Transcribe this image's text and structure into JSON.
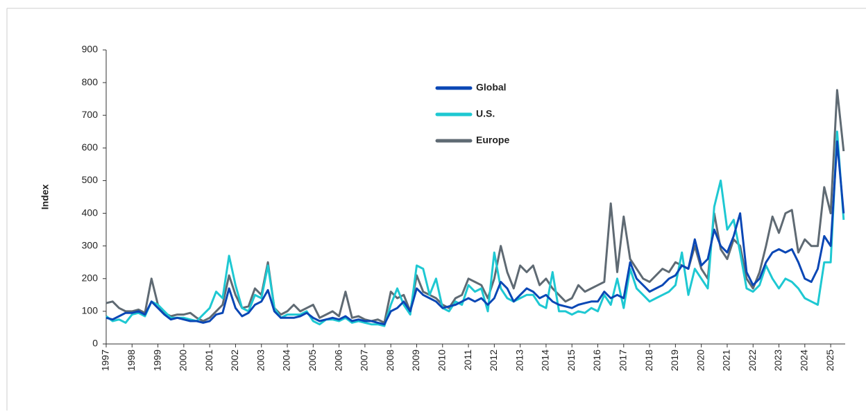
{
  "chart_data": {
    "type": "line",
    "y_label": "Index",
    "x": [
      1997,
      1997.25,
      1997.5,
      1997.75,
      1998,
      1998.25,
      1998.5,
      1998.75,
      1999,
      1999.25,
      1999.5,
      1999.75,
      2000,
      2000.25,
      2000.5,
      2000.75,
      2001,
      2001.25,
      2001.5,
      2001.75,
      2002,
      2002.25,
      2002.5,
      2002.75,
      2003,
      2003.25,
      2003.5,
      2003.75,
      2004,
      2004.25,
      2004.5,
      2004.75,
      2005,
      2005.25,
      2005.5,
      2005.75,
      2006,
      2006.25,
      2006.5,
      2006.75,
      2007,
      2007.25,
      2007.5,
      2007.75,
      2008,
      2008.25,
      2008.5,
      2008.75,
      2009,
      2009.25,
      2009.5,
      2009.75,
      2010,
      2010.25,
      2010.5,
      2010.75,
      2011,
      2011.25,
      2011.5,
      2011.75,
      2012,
      2012.25,
      2012.5,
      2012.75,
      2013,
      2013.25,
      2013.5,
      2013.75,
      2014,
      2014.25,
      2014.5,
      2014.75,
      2015,
      2015.25,
      2015.5,
      2015.75,
      2016,
      2016.25,
      2016.5,
      2016.75,
      2017,
      2017.25,
      2017.5,
      2017.75,
      2018,
      2018.25,
      2018.5,
      2018.75,
      2019,
      2019.25,
      2019.5,
      2019.75,
      2020,
      2020.25,
      2020.5,
      2020.75,
      2021,
      2021.25,
      2021.5,
      2021.75,
      2022,
      2022.25,
      2022.5,
      2022.75,
      2023,
      2023.25,
      2023.5,
      2023.75,
      2024,
      2024.25,
      2024.5,
      2024.75,
      2025,
      2025.25,
      2025.5
    ],
    "series": [
      {
        "name": "Global",
        "color": "#0a47b5",
        "values": [
          80,
          75,
          85,
          95,
          95,
          100,
          90,
          130,
          110,
          90,
          75,
          80,
          75,
          70,
          70,
          65,
          70,
          90,
          95,
          170,
          110,
          85,
          95,
          120,
          130,
          165,
          100,
          80,
          80,
          80,
          85,
          95,
          80,
          70,
          75,
          80,
          75,
          85,
          70,
          75,
          70,
          70,
          65,
          60,
          100,
          110,
          130,
          100,
          170,
          150,
          140,
          130,
          110,
          115,
          120,
          130,
          140,
          130,
          140,
          120,
          140,
          190,
          170,
          130,
          150,
          170,
          160,
          140,
          150,
          130,
          120,
          115,
          110,
          120,
          125,
          130,
          130,
          160,
          140,
          150,
          140,
          250,
          200,
          180,
          160,
          170,
          180,
          200,
          210,
          240,
          230,
          320,
          240,
          260,
          350,
          300,
          280,
          330,
          400,
          220,
          180,
          200,
          250,
          280,
          290,
          280,
          290,
          250,
          200,
          190,
          230,
          330,
          300,
          620,
          400
        ]
      },
      {
        "name": "U.S.",
        "color": "#1ec8d2",
        "values": [
          85,
          70,
          75,
          65,
          90,
          95,
          85,
          130,
          120,
          100,
          80,
          80,
          80,
          75,
          70,
          90,
          110,
          160,
          140,
          270,
          180,
          110,
          100,
          150,
          140,
          240,
          110,
          80,
          90,
          90,
          90,
          100,
          70,
          60,
          75,
          75,
          70,
          80,
          65,
          70,
          65,
          60,
          60,
          55,
          120,
          170,
          120,
          90,
          240,
          230,
          150,
          200,
          110,
          100,
          130,
          120,
          180,
          160,
          170,
          100,
          280,
          170,
          140,
          130,
          140,
          150,
          150,
          120,
          110,
          220,
          100,
          100,
          90,
          100,
          95,
          110,
          100,
          150,
          120,
          200,
          110,
          230,
          170,
          150,
          130,
          140,
          150,
          160,
          180,
          280,
          150,
          230,
          200,
          170,
          420,
          500,
          350,
          380,
          280,
          170,
          160,
          180,
          240,
          200,
          170,
          200,
          190,
          170,
          140,
          130,
          120,
          250,
          250,
          650,
          380
        ]
      },
      {
        "name": "Europe",
        "color": "#5f6a73",
        "values": [
          125,
          130,
          110,
          100,
          100,
          105,
          95,
          200,
          120,
          95,
          85,
          90,
          90,
          95,
          80,
          70,
          80,
          100,
          120,
          210,
          150,
          110,
          115,
          170,
          150,
          250,
          110,
          90,
          100,
          120,
          100,
          110,
          120,
          80,
          90,
          100,
          85,
          160,
          80,
          85,
          75,
          70,
          75,
          65,
          160,
          140,
          150,
          100,
          210,
          160,
          150,
          140,
          120,
          110,
          140,
          150,
          200,
          190,
          180,
          140,
          200,
          300,
          220,
          170,
          240,
          220,
          240,
          180,
          200,
          170,
          150,
          130,
          140,
          180,
          160,
          170,
          180,
          190,
          430,
          220,
          390,
          260,
          230,
          200,
          190,
          210,
          230,
          220,
          250,
          240,
          230,
          300,
          230,
          200,
          400,
          290,
          260,
          320,
          300,
          200,
          170,
          220,
          300,
          390,
          340,
          400,
          410,
          280,
          320,
          300,
          300,
          480,
          400,
          777,
          590
        ]
      }
    ],
    "xlim": [
      1997,
      2025.56
    ],
    "xticks": [
      1997,
      1998,
      1999,
      2000,
      2001,
      2002,
      2003,
      2004,
      2005,
      2006,
      2007,
      2008,
      2009,
      2010,
      2011,
      2012,
      2013,
      2014,
      2015,
      2016,
      2017,
      2018,
      2019,
      2020,
      2021,
      2022,
      2023,
      2024,
      2025
    ],
    "ylim": [
      0,
      900
    ],
    "yticks": [
      0,
      100,
      200,
      300,
      400,
      500,
      600,
      700,
      800,
      900
    ],
    "legend": "top-center"
  }
}
